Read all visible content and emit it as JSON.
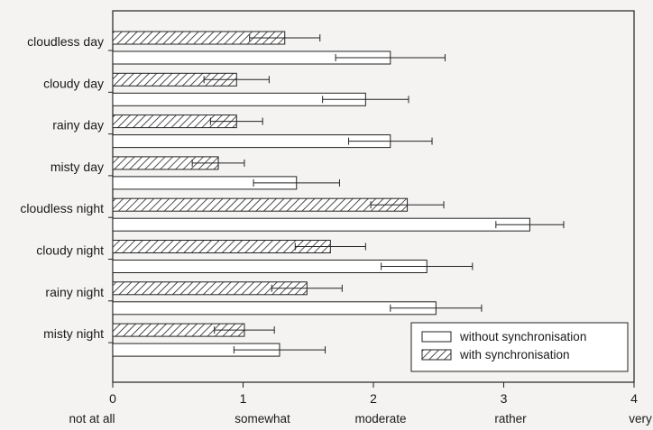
{
  "chart_data": {
    "type": "bar",
    "orientation": "horizontal",
    "categories": [
      "cloudless day",
      "cloudy day",
      "rainy day",
      "misty day",
      "cloudless night",
      "cloudy night",
      "rainy night",
      "misty night"
    ],
    "series": [
      {
        "name": "with synchronisation",
        "pattern": "hatched",
        "values": [
          1.32,
          0.95,
          0.95,
          0.81,
          2.26,
          1.67,
          1.49,
          1.01
        ],
        "errors": [
          0.27,
          0.25,
          0.2,
          0.2,
          0.28,
          0.27,
          0.27,
          0.23
        ]
      },
      {
        "name": "without synchronisation",
        "pattern": "open",
        "values": [
          2.13,
          1.94,
          2.13,
          1.41,
          3.2,
          2.41,
          2.48,
          1.28
        ],
        "errors": [
          0.42,
          0.33,
          0.32,
          0.33,
          0.26,
          0.35,
          0.35,
          0.35
        ]
      }
    ],
    "xlim": [
      0,
      4
    ],
    "xticks": [
      "0",
      "1",
      "2",
      "3",
      "4"
    ],
    "scale_labels": [
      "not at all",
      "somewhat",
      "moderate",
      "rather",
      "very"
    ],
    "legend_position": "bottom-right",
    "grid": false,
    "colors": {
      "bar_stroke": "#222222",
      "bar_fill_open": "#ffffff",
      "hatch": "#222222",
      "background": "#f4f3f1"
    }
  }
}
